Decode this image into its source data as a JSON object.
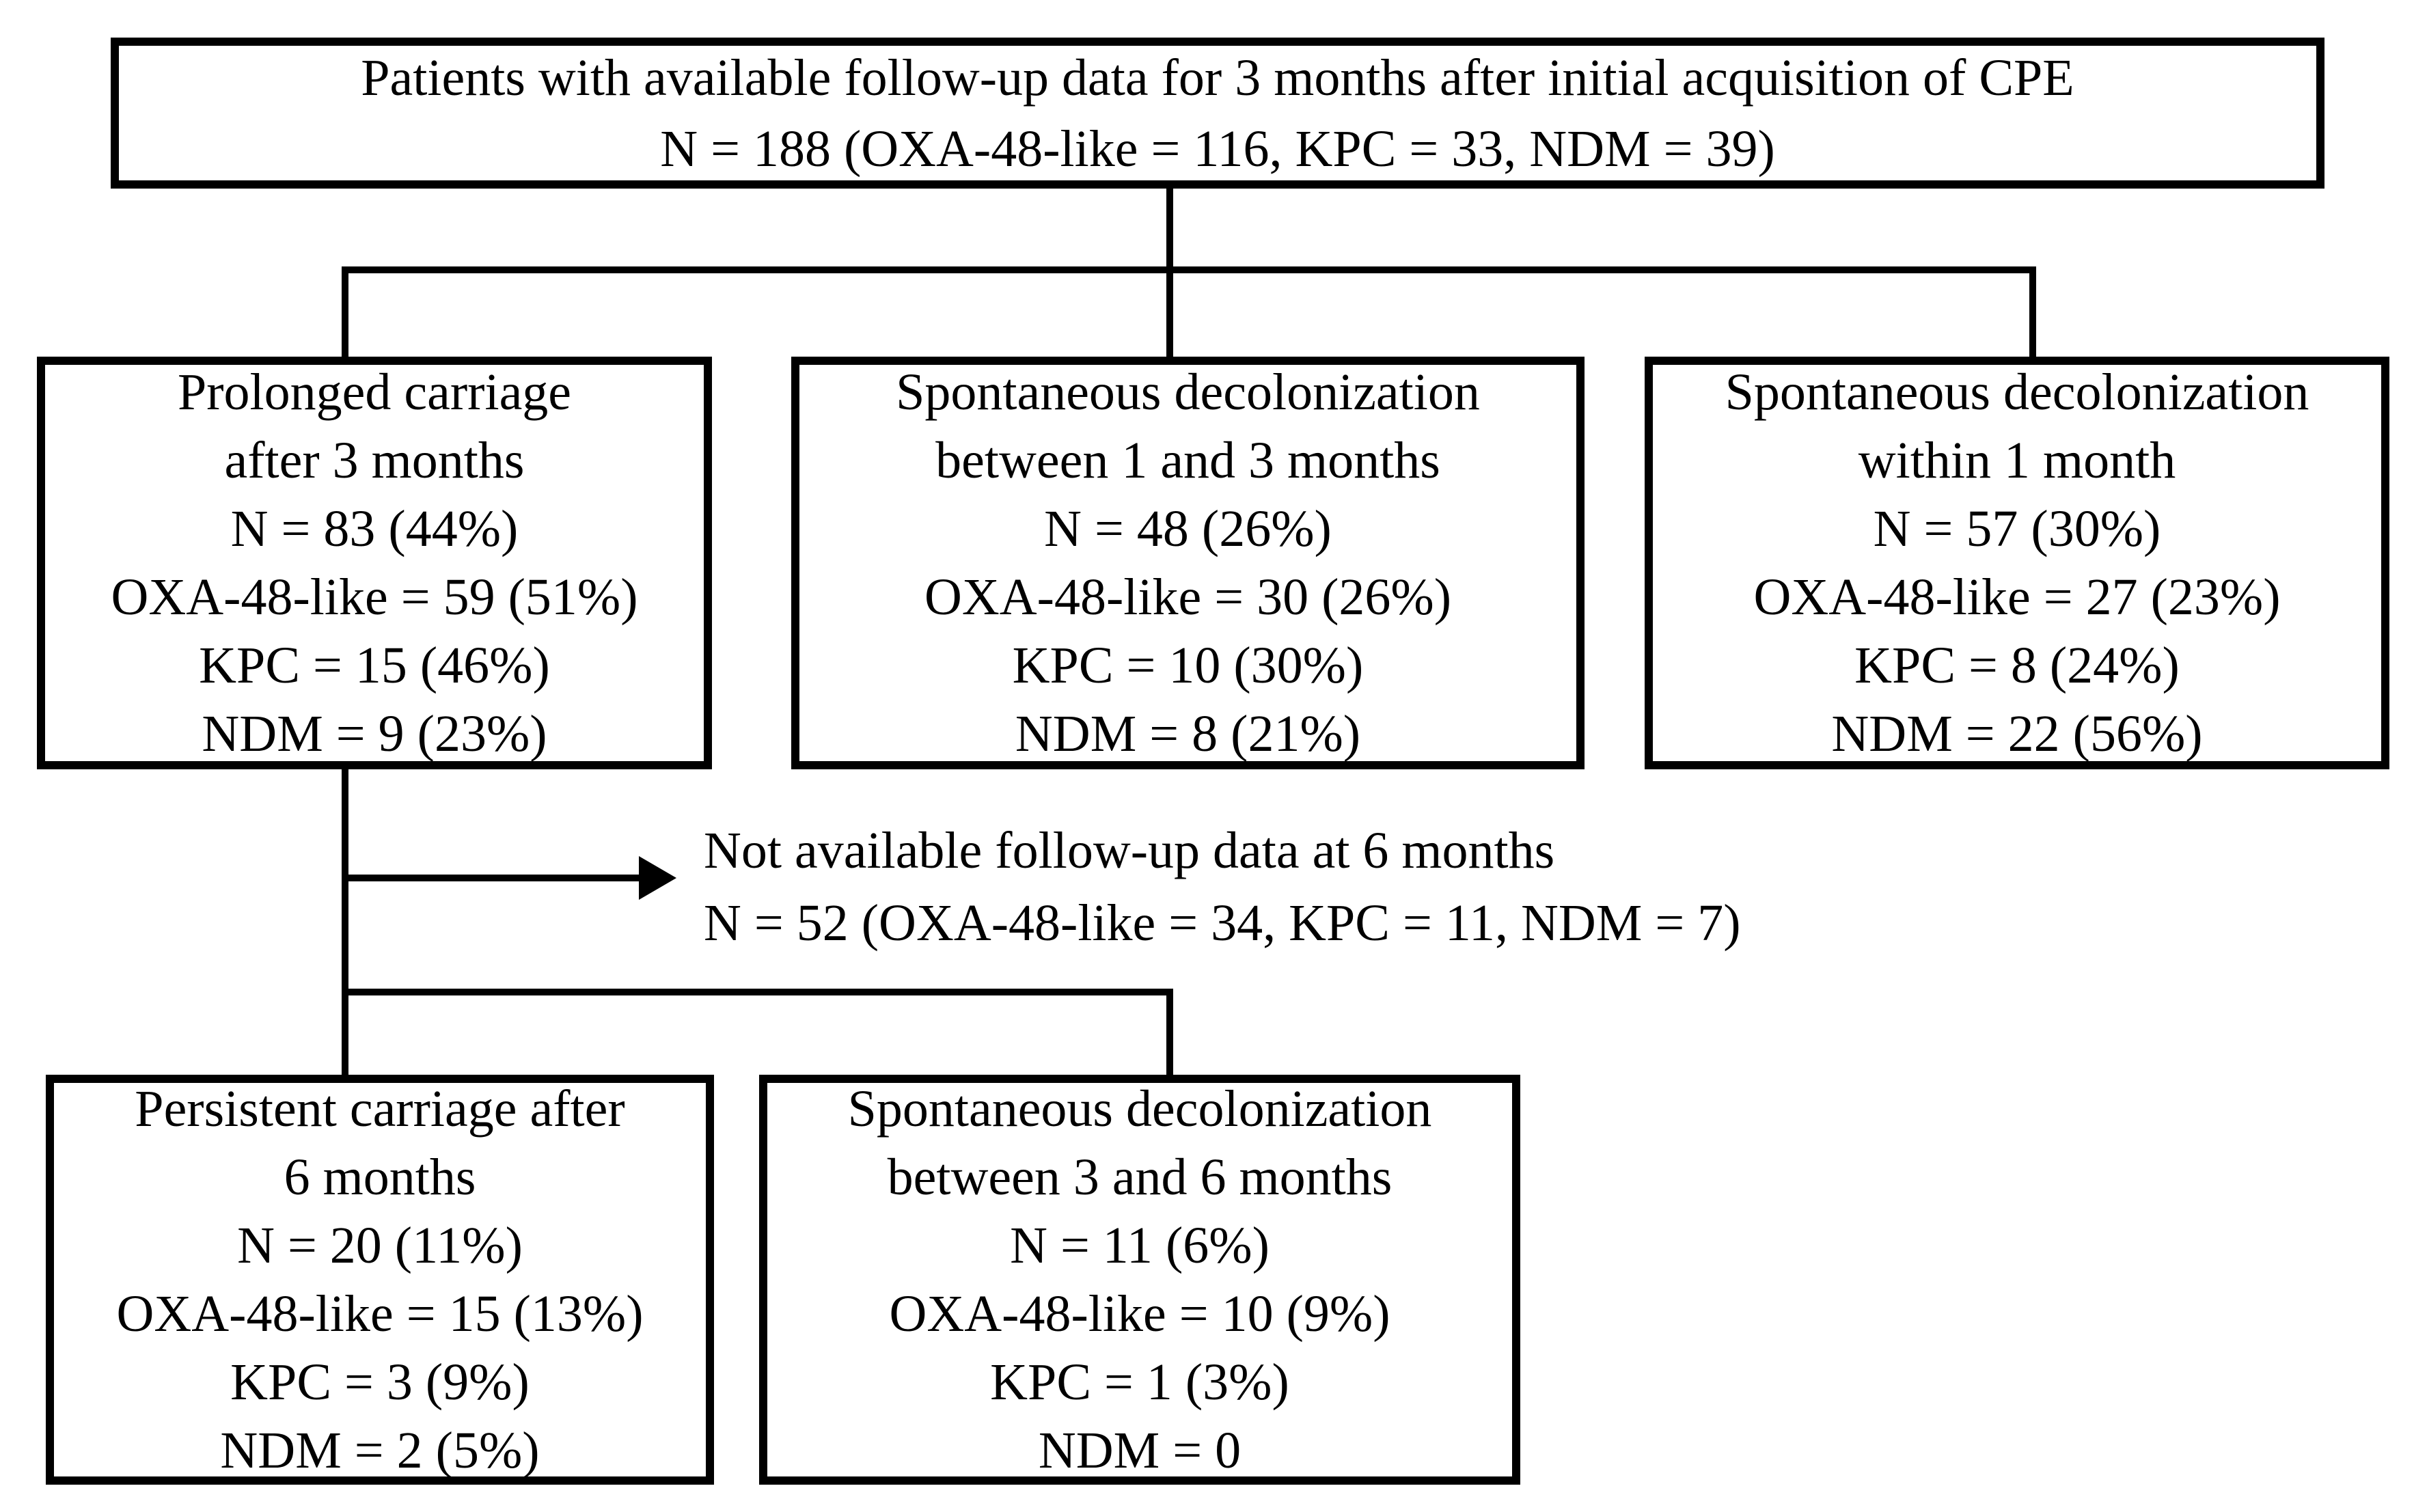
{
  "colors": {
    "ink": "#000000",
    "background": "#ffffff"
  },
  "boxes": {
    "root": {
      "lines": [
        "Patients with available follow-up data for 3 months after initial acquisition of CPE",
        "N = 188 (OXA-48-like = 116, KPC = 33, NDM = 39)"
      ]
    },
    "prolonged": {
      "lines": [
        "Prolonged carriage",
        "after 3 months",
        "N = 83 (44%)",
        "OXA-48-like = 59 (51%)",
        "KPC = 15 (46%)",
        "NDM = 9 (23%)"
      ]
    },
    "spont13": {
      "lines": [
        "Spontaneous decolonization",
        "between 1 and 3 months",
        "N = 48 (26%)",
        "OXA-48-like = 30 (26%)",
        "KPC = 10 (30%)",
        "NDM = 8 (21%)"
      ]
    },
    "spont1": {
      "lines": [
        "Spontaneous decolonization",
        "within 1 month",
        "N = 57 (30%)",
        "OXA-48-like = 27 (23%)",
        "KPC = 8 (24%)",
        "NDM = 22 (56%)"
      ]
    },
    "persistent": {
      "lines": [
        "Persistent carriage after",
        "6 months",
        "N = 20 (11%)",
        "OXA-48-like = 15 (13%)",
        "KPC = 3 (9%)",
        "NDM = 2 (5%)"
      ]
    },
    "spont36": {
      "lines": [
        "Spontaneous decolonization",
        "between 3 and 6 months",
        "N = 11 (6%)",
        "OXA-48-like = 10 (9%)",
        "KPC = 1 (3%)",
        "NDM = 0"
      ]
    }
  },
  "annotation": {
    "lines": [
      "Not available follow-up data at 6 months",
      "N = 52 (OXA-48-like = 34, KPC = 11, NDM = 7)"
    ]
  }
}
